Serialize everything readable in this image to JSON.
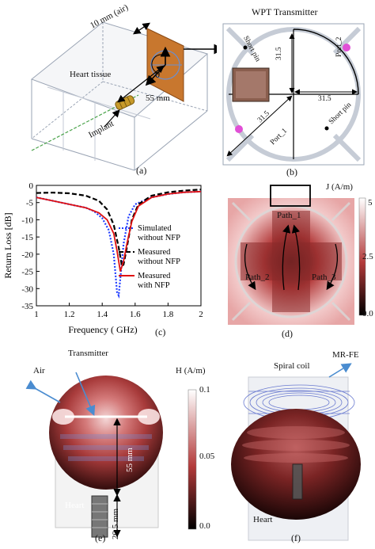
{
  "panel_a": {
    "label": "(a)",
    "dim_air": "10 mm (air)",
    "heart_tissue": "Heart tissue",
    "theta": "θ",
    "dim_55": "55 mm",
    "implant": "Implant"
  },
  "panel_b": {
    "label": "(b)",
    "title": "WPT Transmitter",
    "short_pin_top": "Short pin",
    "short_pin_bottom": "Short pin",
    "dim_v": "31.5",
    "dim_h": "31.5",
    "dim_diag": "31.5",
    "port1": "Port_1",
    "port2": "Port_2"
  },
  "panel_c": {
    "label": "(c)",
    "chart_data": {
      "type": "line",
      "xlabel": "Frequency ( GHz)",
      "ylabel": "Return Loss [dB]",
      "xlim": [
        1,
        2
      ],
      "ylim": [
        -35,
        0
      ],
      "xticks": [
        "1",
        "1.2",
        "1.4",
        "1.6",
        "1.8",
        "2"
      ],
      "yticks": [
        "0",
        "-5",
        "-10",
        "-15",
        "-20",
        "-25",
        "-30",
        "-35"
      ],
      "legend_position": "right",
      "series": [
        {
          "name": "Simulated without NFP",
          "color": "#1f3cff",
          "style": "dotted",
          "x": [
            1.0,
            1.1,
            1.2,
            1.3,
            1.35,
            1.4,
            1.44,
            1.47,
            1.49,
            1.5,
            1.51,
            1.53,
            1.56,
            1.6,
            1.7,
            1.8,
            1.9,
            2.0
          ],
          "y": [
            -3.5,
            -4.5,
            -5.5,
            -6.5,
            -7.5,
            -9.5,
            -13,
            -20,
            -31,
            -32,
            -27,
            -17,
            -9,
            -5.5,
            -3.5,
            -2.5,
            -2,
            -1.8
          ]
        },
        {
          "name": "Measured without NFP",
          "color": "#000000",
          "style": "dashed",
          "x": [
            1.0,
            1.1,
            1.2,
            1.3,
            1.38,
            1.43,
            1.47,
            1.5,
            1.52,
            1.53,
            1.55,
            1.58,
            1.62,
            1.7,
            1.8,
            1.9,
            2.0
          ],
          "y": [
            -2.2,
            -2.1,
            -2.3,
            -3,
            -4.5,
            -7,
            -11.5,
            -18,
            -23.5,
            -23,
            -18,
            -10,
            -5.5,
            -3,
            -2,
            -1.5,
            -1.2
          ]
        },
        {
          "name": "Measured with NFP",
          "color": "#e01010",
          "style": "solid",
          "x": [
            1.0,
            1.1,
            1.2,
            1.3,
            1.38,
            1.43,
            1.47,
            1.49,
            1.51,
            1.53,
            1.55,
            1.58,
            1.62,
            1.7,
            1.8,
            1.9,
            2.0
          ],
          "y": [
            -3.5,
            -4.5,
            -5.5,
            -6.5,
            -8,
            -10,
            -14,
            -19,
            -25,
            -22,
            -17,
            -10.5,
            -6,
            -3.5,
            -2.5,
            -2,
            -1.8
          ]
        }
      ]
    }
  },
  "panel_d": {
    "label": "(d)",
    "unit": "J (A/m)",
    "ticks": [
      "5",
      "2.5",
      "0.0"
    ],
    "path1": "Path_1",
    "path2": "Path_2",
    "path3": "Path_3"
  },
  "panel_e": {
    "label": "(e)",
    "transmitter": "Transmitter",
    "air": "Air",
    "dim_55": "55 mm",
    "dim_205": "20.5 mm",
    "heart": "Heart",
    "unit": "H (A/m)",
    "ticks": [
      "0.1",
      "0.05",
      "0.0"
    ]
  },
  "panel_f": {
    "label": "(f)",
    "spiral_coil": "Spiral coil",
    "mr_fe": "MR-FE",
    "heart": "Heart"
  },
  "colors": {
    "field_red": "#b33a3a",
    "field_dark": "#1a0a0a",
    "field_light": "#f2c9c9",
    "antenna_orange": "#c8772e",
    "port_magenta": "#e14fd6"
  }
}
